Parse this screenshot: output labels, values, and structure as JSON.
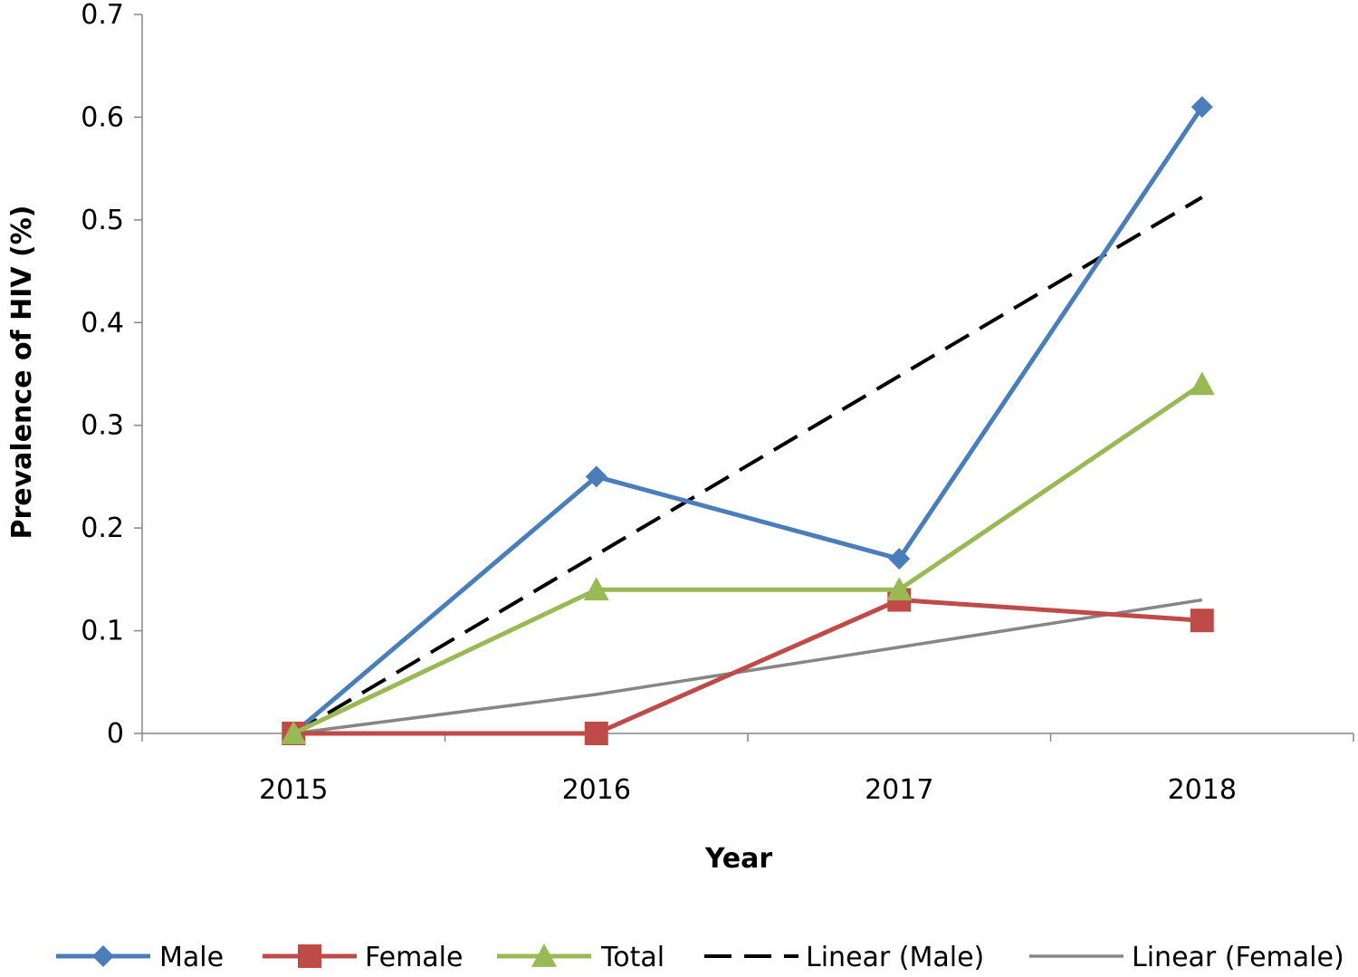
{
  "chart_data": {
    "type": "line",
    "title": "",
    "xlabel": "Year",
    "ylabel": "Prevalence of HIV (%)",
    "categories": [
      "2015",
      "2016",
      "2017",
      "2018"
    ],
    "ylim": [
      0,
      0.7
    ],
    "yticks": [
      0,
      0.1,
      0.2,
      0.3,
      0.4,
      0.5,
      0.6,
      0.7
    ],
    "ytick_labels": [
      "0",
      "0.1",
      "0.2",
      "0.3",
      "0.4",
      "0.5",
      "0.6",
      "0.7"
    ],
    "grid": false,
    "legend_position": "bottom",
    "series": [
      {
        "name": "Male",
        "values": [
          0,
          0.25,
          0.17,
          0.61
        ],
        "color": "#4A7EBB",
        "marker": "diamond",
        "style": "solid"
      },
      {
        "name": "Female",
        "values": [
          0,
          0,
          0.13,
          0.11
        ],
        "color": "#BE4B48",
        "marker": "square",
        "style": "solid"
      },
      {
        "name": "Total",
        "values": [
          0,
          0.14,
          0.14,
          0.34
        ],
        "color": "#98B954",
        "marker": "triangle",
        "style": "solid"
      },
      {
        "name": "Linear (Male)",
        "values": [
          0,
          0.174,
          0.348,
          0.522
        ],
        "color": "#000000",
        "marker": "none",
        "style": "dashed"
      },
      {
        "name": "Linear (Female)",
        "values": [
          -0.008,
          0.038,
          0.084,
          0.13
        ],
        "color": "#868686",
        "marker": "none",
        "style": "solid"
      }
    ]
  }
}
